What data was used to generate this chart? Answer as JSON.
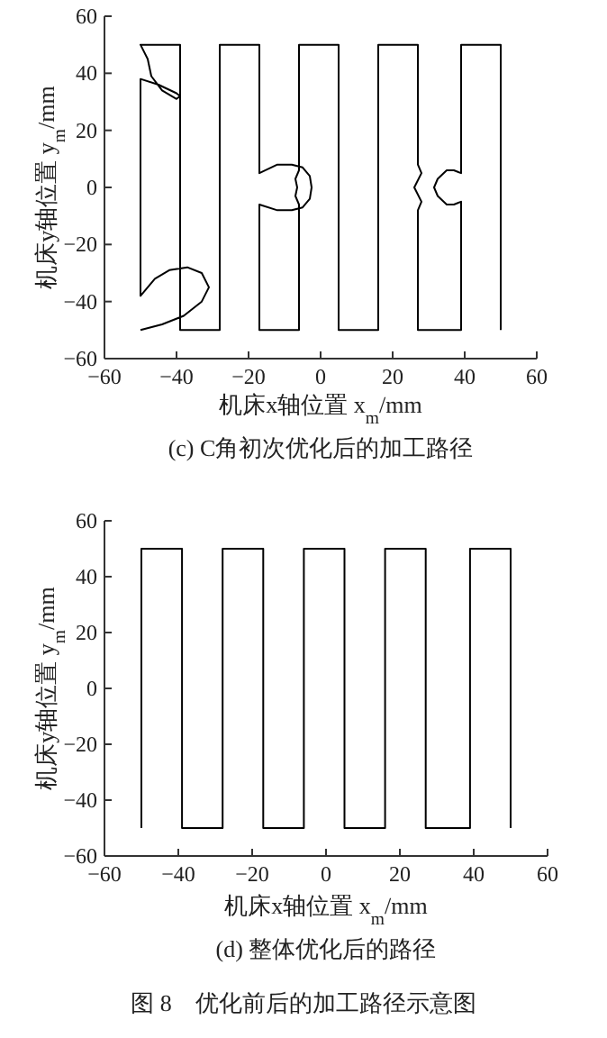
{
  "chart_data": [
    {
      "type": "line",
      "title": "(c) C角初次优化后的加工路径",
      "xlabel": "机床x轴位置 x$_{m}$/mm",
      "ylabel": "机床y轴位置 y$_{m}$/mm",
      "xlim": [
        -60,
        60
      ],
      "ylim": [
        -60,
        60
      ],
      "xticks": [
        {
          "value": -60,
          "label": "−60"
        },
        {
          "value": -40,
          "label": "−40"
        },
        {
          "value": -20,
          "label": "−20"
        },
        0,
        20,
        40,
        60
      ],
      "yticks": [
        {
          "value": -60,
          "label": "−60"
        },
        {
          "value": -40,
          "label": "−40"
        },
        {
          "value": -20,
          "label": "−20"
        },
        0,
        20,
        40,
        60
      ],
      "series": [
        {
          "color": "#000000",
          "x": [
            -50,
            -44,
            -38,
            -33,
            -31,
            -33,
            -37,
            -42,
            -46,
            -50,
            -50,
            -50,
            -45,
            -40,
            -39,
            -40,
            -44,
            -47,
            -48,
            -50,
            -39,
            -39,
            -28,
            -28,
            -17,
            -17,
            -12,
            -8,
            -5,
            -3,
            -2.5,
            -3,
            -5,
            -8,
            -12,
            -17,
            -17,
            -6,
            -6,
            -7,
            -6.5,
            -7,
            -6,
            -6,
            5,
            5,
            16,
            16,
            27,
            27,
            28,
            26,
            28,
            27,
            27,
            39,
            39,
            37,
            35,
            32.5,
            31.5,
            32.5,
            35,
            37,
            39,
            39,
            50,
            50
          ],
          "values": [
            -50,
            -48,
            -45,
            -40,
            -35,
            -30,
            -28,
            -29,
            -32,
            -38,
            0,
            38,
            36,
            33,
            32,
            31,
            34,
            39,
            45,
            50,
            50,
            -50,
            -50,
            50,
            50,
            5,
            8,
            8,
            7,
            4,
            0,
            -4,
            -7,
            -8,
            -8,
            -6,
            -50,
            -50,
            -6,
            -3,
            0,
            3,
            6,
            50,
            50,
            -50,
            -50,
            50,
            50,
            8,
            5,
            0,
            -5,
            -8,
            -50,
            -50,
            -5,
            -6,
            -6,
            -3,
            0,
            3,
            6,
            6,
            5,
            50,
            50,
            -50
          ]
        }
      ]
    },
    {
      "type": "line",
      "title": "(d) 整体优化后的路径",
      "xlabel": "机床x轴位置 x$_{m}$/mm",
      "ylabel": "机床y轴位置 y$_{m}$/mm",
      "xlim": [
        -60,
        60
      ],
      "ylim": [
        -60,
        60
      ],
      "xticks": [
        {
          "value": -60,
          "label": "−60"
        },
        {
          "value": -40,
          "label": "−40"
        },
        {
          "value": -20,
          "label": "−20"
        },
        0,
        20,
        40,
        60
      ],
      "yticks": [
        {
          "value": -60,
          "label": "−60"
        },
        {
          "value": -40,
          "label": "−40"
        },
        {
          "value": -20,
          "label": "−20"
        },
        0,
        20,
        40,
        60
      ],
      "annotations": [
        "图 8　优化前后的加工路径示意图"
      ],
      "series": [
        {
          "color": "#000000",
          "x": [
            -50,
            -50,
            -39,
            -39,
            -28,
            -28,
            -17,
            -17,
            -6,
            -6,
            5,
            5,
            16,
            16,
            27,
            27,
            39,
            39,
            50,
            50
          ],
          "values": [
            -50,
            50,
            50,
            -50,
            -50,
            50,
            50,
            -50,
            -50,
            50,
            50,
            -50,
            -50,
            50,
            50,
            -50,
            -50,
            50,
            50,
            -50
          ]
        }
      ]
    }
  ]
}
